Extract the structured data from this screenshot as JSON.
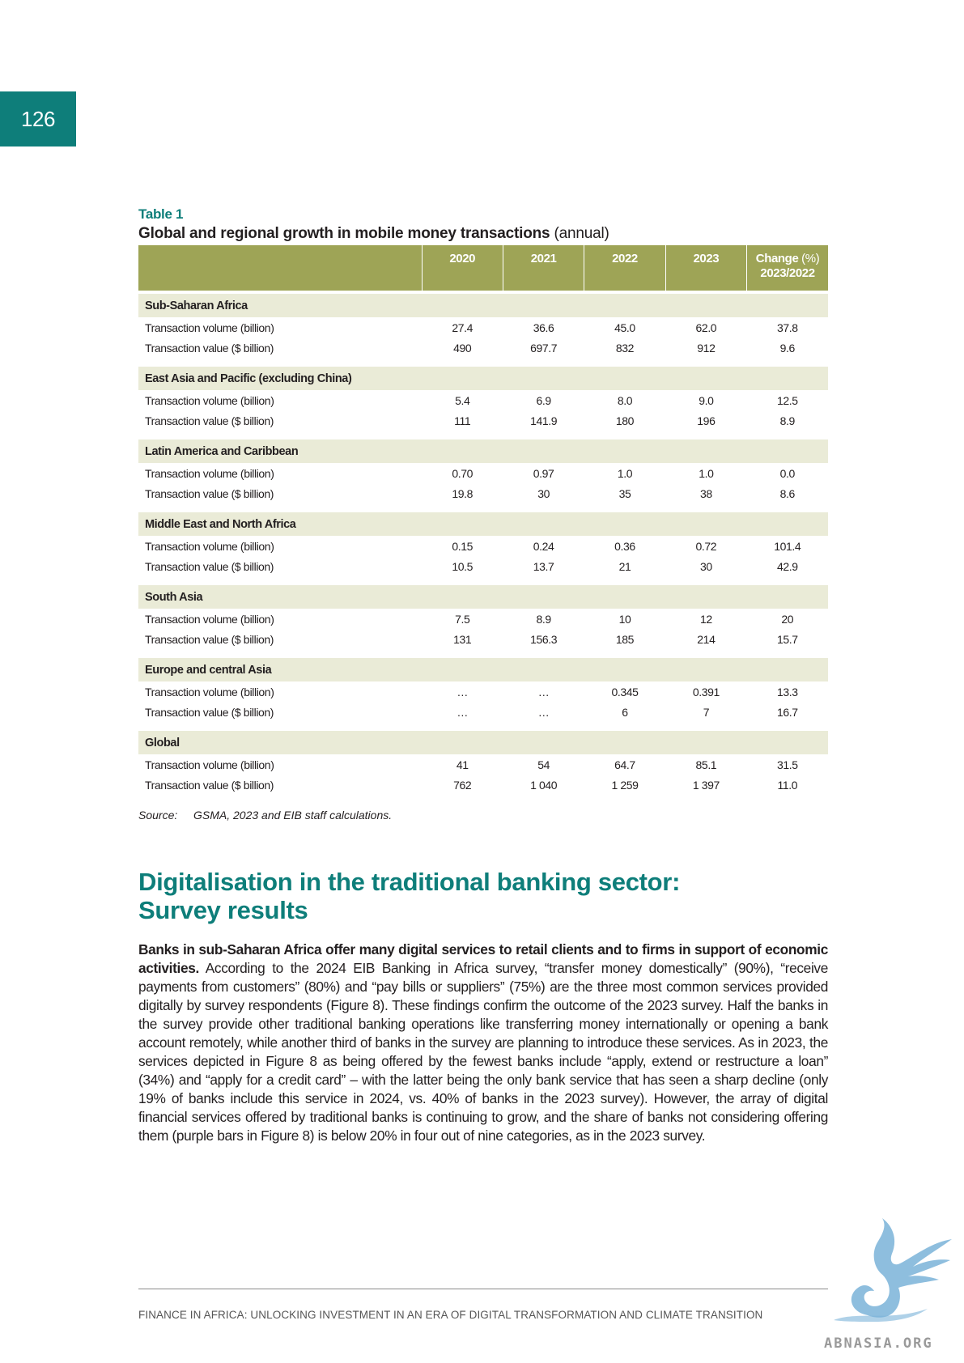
{
  "page_number": "126",
  "table": {
    "label": "Table 1",
    "title_bold": "Global and regional growth in mobile money transactions",
    "title_rest": " (annual)",
    "headers": {
      "y2020": "2020",
      "y2021": "2021",
      "y2022": "2022",
      "y2023": "2023",
      "change_main": "Change",
      "change_unit": " (%)",
      "change_period": "2023/2022"
    },
    "regions": [
      {
        "name": "Sub-Saharan Africa",
        "rows": [
          {
            "label": "Transaction volume (billion)",
            "values": [
              "27.4",
              "36.6",
              "45.0",
              "62.0",
              "37.8"
            ]
          },
          {
            "label": "Transaction value ($ billion)",
            "values": [
              "490",
              "697.7",
              "832",
              "912",
              "9.6"
            ]
          }
        ]
      },
      {
        "name": "East Asia and Pacific (excluding China)",
        "rows": [
          {
            "label": "Transaction volume (billion)",
            "values": [
              "5.4",
              "6.9",
              "8.0",
              "9.0",
              "12.5"
            ]
          },
          {
            "label": "Transaction value ($ billion)",
            "values": [
              "111",
              "141.9",
              "180",
              "196",
              "8.9"
            ]
          }
        ]
      },
      {
        "name": "Latin America and Caribbean",
        "rows": [
          {
            "label": "Transaction volume (billion)",
            "values": [
              "0.70",
              "0.97",
              "1.0",
              "1.0",
              "0.0"
            ]
          },
          {
            "label": "Transaction value ($ billion)",
            "values": [
              "19.8",
              "30",
              "35",
              "38",
              "8.6"
            ]
          }
        ]
      },
      {
        "name": "Middle East and North Africa",
        "rows": [
          {
            "label": "Transaction volume (billion)",
            "values": [
              "0.15",
              "0.24",
              "0.36",
              "0.72",
              "101.4"
            ]
          },
          {
            "label": "Transaction value ($ billion)",
            "values": [
              "10.5",
              "13.7",
              "21",
              "30",
              "42.9"
            ]
          }
        ]
      },
      {
        "name": "South Asia",
        "rows": [
          {
            "label": "Transaction volume (billion)",
            "values": [
              "7.5",
              "8.9",
              "10",
              "12",
              "20"
            ]
          },
          {
            "label": "Transaction value ($ billion)",
            "values": [
              "131",
              "156.3",
              "185",
              "214",
              "15.7"
            ]
          }
        ]
      },
      {
        "name": "Europe and central Asia",
        "rows": [
          {
            "label": "Transaction volume (billion)",
            "values": [
              "…",
              "…",
              "0.345",
              "0.391",
              "13.3"
            ]
          },
          {
            "label": "Transaction value ($ billion)",
            "values": [
              "…",
              "…",
              "6",
              "7",
              "16.7"
            ]
          }
        ]
      },
      {
        "name": "Global",
        "rows": [
          {
            "label": "Transaction volume (billion)",
            "values": [
              "41",
              "54",
              "64.7",
              "85.1",
              "31.5"
            ]
          },
          {
            "label": "Transaction value ($ billion)",
            "values": [
              "762",
              "1 040",
              "1 259",
              "1 397",
              "11.0"
            ]
          }
        ]
      }
    ],
    "source_label": "Source:",
    "source_text": "GSMA, 2023 and EIB staff calculations."
  },
  "section": {
    "heading_line1": "Digitalisation in the traditional banking sector:",
    "heading_line2": "Survey results",
    "lead": "Banks in sub-Saharan Africa offer many digital services to retail clients and to firms in support of economic activities.",
    "body": " According to the 2024 EIB Banking in Africa survey, “transfer money domestically” (90%), “receive payments from customers” (80%) and “pay bills or suppliers” (75%) are the three most common services provided digitally by survey respondents (Figure 8). These findings confirm the outcome of the 2023 survey. Half the banks in the survey provide other traditional banking operations like transferring money internationally or opening a bank account remotely, while another third of banks in the survey are planning to introduce these services. As in 2023, the services depicted in Figure 8 as being offered by the fewest banks include “apply, extend or restructure a loan” (34%) and “apply for a credit card” – with the latter being the only bank service that has seen a sharp decline (only 19% of banks include this service in 2024, vs. 40% of banks in the 2023 survey). However, the array of digital financial services offered by traditional banks is continuing to grow, and the share of banks not considering offering them (purple bars in Figure 8) is below 20% in four out of nine categories, as in the 2023 survey."
  },
  "footer": {
    "text": "FINANCE IN AFRICA: UNLOCKING INVESTMENT IN AN ERA OF DIGITAL TRANSFORMATION AND CLIMATE TRANSITION"
  },
  "watermark": "ABNASIA.ORG",
  "colors": {
    "accent": "#0e7e7a",
    "table_header": "#9ea456",
    "region_band": "#eaebd7"
  }
}
